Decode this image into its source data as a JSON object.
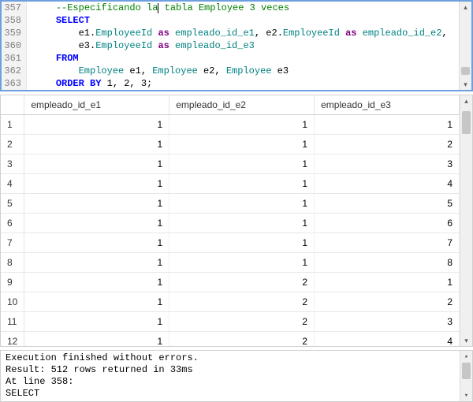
{
  "editor": {
    "border_color": "#6e9fde",
    "font_family": "Consolas",
    "font_size_pt": 9,
    "gutter_bg": "#f3f3f3",
    "gutter_fg": "#808080",
    "colors": {
      "comment": "#008000",
      "keyword": "#0000ff",
      "identifier": "#008080",
      "as": "#800080",
      "default": "#000000"
    },
    "lines": [
      {
        "n": 357,
        "tokens": [
          {
            "t": "    ",
            "c": "d"
          },
          {
            "t": "--Especificando la",
            "c": "comment"
          },
          {
            "cursor": true
          },
          {
            "t": " tabla Employee 3 veces",
            "c": "comment"
          }
        ]
      },
      {
        "n": 358,
        "tokens": [
          {
            "t": "    ",
            "c": "d"
          },
          {
            "t": "SELECT",
            "c": "kw"
          }
        ]
      },
      {
        "n": 359,
        "tokens": [
          {
            "t": "        ",
            "c": "d"
          },
          {
            "t": "e1",
            "c": "d"
          },
          {
            "t": ".",
            "c": "d"
          },
          {
            "t": "EmployeeId",
            "c": "ident"
          },
          {
            "t": " ",
            "c": "d"
          },
          {
            "t": "as",
            "c": "as"
          },
          {
            "t": " ",
            "c": "d"
          },
          {
            "t": "empleado_id_e1",
            "c": "ident"
          },
          {
            "t": ", ",
            "c": "d"
          },
          {
            "t": "e2",
            "c": "d"
          },
          {
            "t": ".",
            "c": "d"
          },
          {
            "t": "EmployeeId",
            "c": "ident"
          },
          {
            "t": " ",
            "c": "d"
          },
          {
            "t": "as",
            "c": "as"
          },
          {
            "t": " ",
            "c": "d"
          },
          {
            "t": "empleado_id_e2",
            "c": "ident"
          },
          {
            "t": ",",
            "c": "d"
          }
        ]
      },
      {
        "n": 360,
        "tokens": [
          {
            "t": "        ",
            "c": "d"
          },
          {
            "t": "e3",
            "c": "d"
          },
          {
            "t": ".",
            "c": "d"
          },
          {
            "t": "EmployeeId",
            "c": "ident"
          },
          {
            "t": " ",
            "c": "d"
          },
          {
            "t": "as",
            "c": "as"
          },
          {
            "t": " ",
            "c": "d"
          },
          {
            "t": "empleado_id_e3",
            "c": "ident"
          }
        ]
      },
      {
        "n": 361,
        "tokens": [
          {
            "t": "    ",
            "c": "d"
          },
          {
            "t": "FROM",
            "c": "kw"
          }
        ]
      },
      {
        "n": 362,
        "tokens": [
          {
            "t": "        ",
            "c": "d"
          },
          {
            "t": "Employee",
            "c": "ident"
          },
          {
            "t": " e1, ",
            "c": "d"
          },
          {
            "t": "Employee",
            "c": "ident"
          },
          {
            "t": " e2, ",
            "c": "d"
          },
          {
            "t": "Employee",
            "c": "ident"
          },
          {
            "t": " e3",
            "c": "d"
          }
        ]
      },
      {
        "n": 363,
        "tokens": [
          {
            "t": "    ",
            "c": "d"
          },
          {
            "t": "ORDER BY",
            "c": "kw"
          },
          {
            "t": " 1, 2, 3;",
            "c": "d"
          }
        ]
      }
    ],
    "scrollbar": {
      "thumb_top_pct": 82,
      "thumb_height_pct": 12
    }
  },
  "results": {
    "columns": [
      "empleado_id_e1",
      "empleado_id_e2",
      "empleado_id_e3"
    ],
    "col_align": "right",
    "row_number_align": "left",
    "border_color": "#d0d0d0",
    "grid_color": "#e8e8e8",
    "rows": [
      [
        1,
        1,
        1
      ],
      [
        1,
        1,
        2
      ],
      [
        1,
        1,
        3
      ],
      [
        1,
        1,
        4
      ],
      [
        1,
        1,
        5
      ],
      [
        1,
        1,
        6
      ],
      [
        1,
        1,
        7
      ],
      [
        1,
        1,
        8
      ],
      [
        1,
        2,
        1
      ],
      [
        1,
        2,
        2
      ],
      [
        1,
        2,
        3
      ],
      [
        1,
        2,
        4
      ]
    ],
    "scrollbar": {
      "thumb_top_pct": 2,
      "thumb_height_pct": 10
    }
  },
  "messages": {
    "font_family": "Consolas",
    "lines": [
      "Execution finished without errors.",
      "Result: 512 rows returned in 33ms",
      "At line 358:",
      "SELECT"
    ],
    "scrollbar": {
      "thumb_top_pct": 2,
      "thumb_height_pct": 60
    }
  },
  "scrollbar_style": {
    "track_bg": "#f0f0f0",
    "thumb_bg": "#c6c6c6",
    "btn_fg": "#606060"
  }
}
